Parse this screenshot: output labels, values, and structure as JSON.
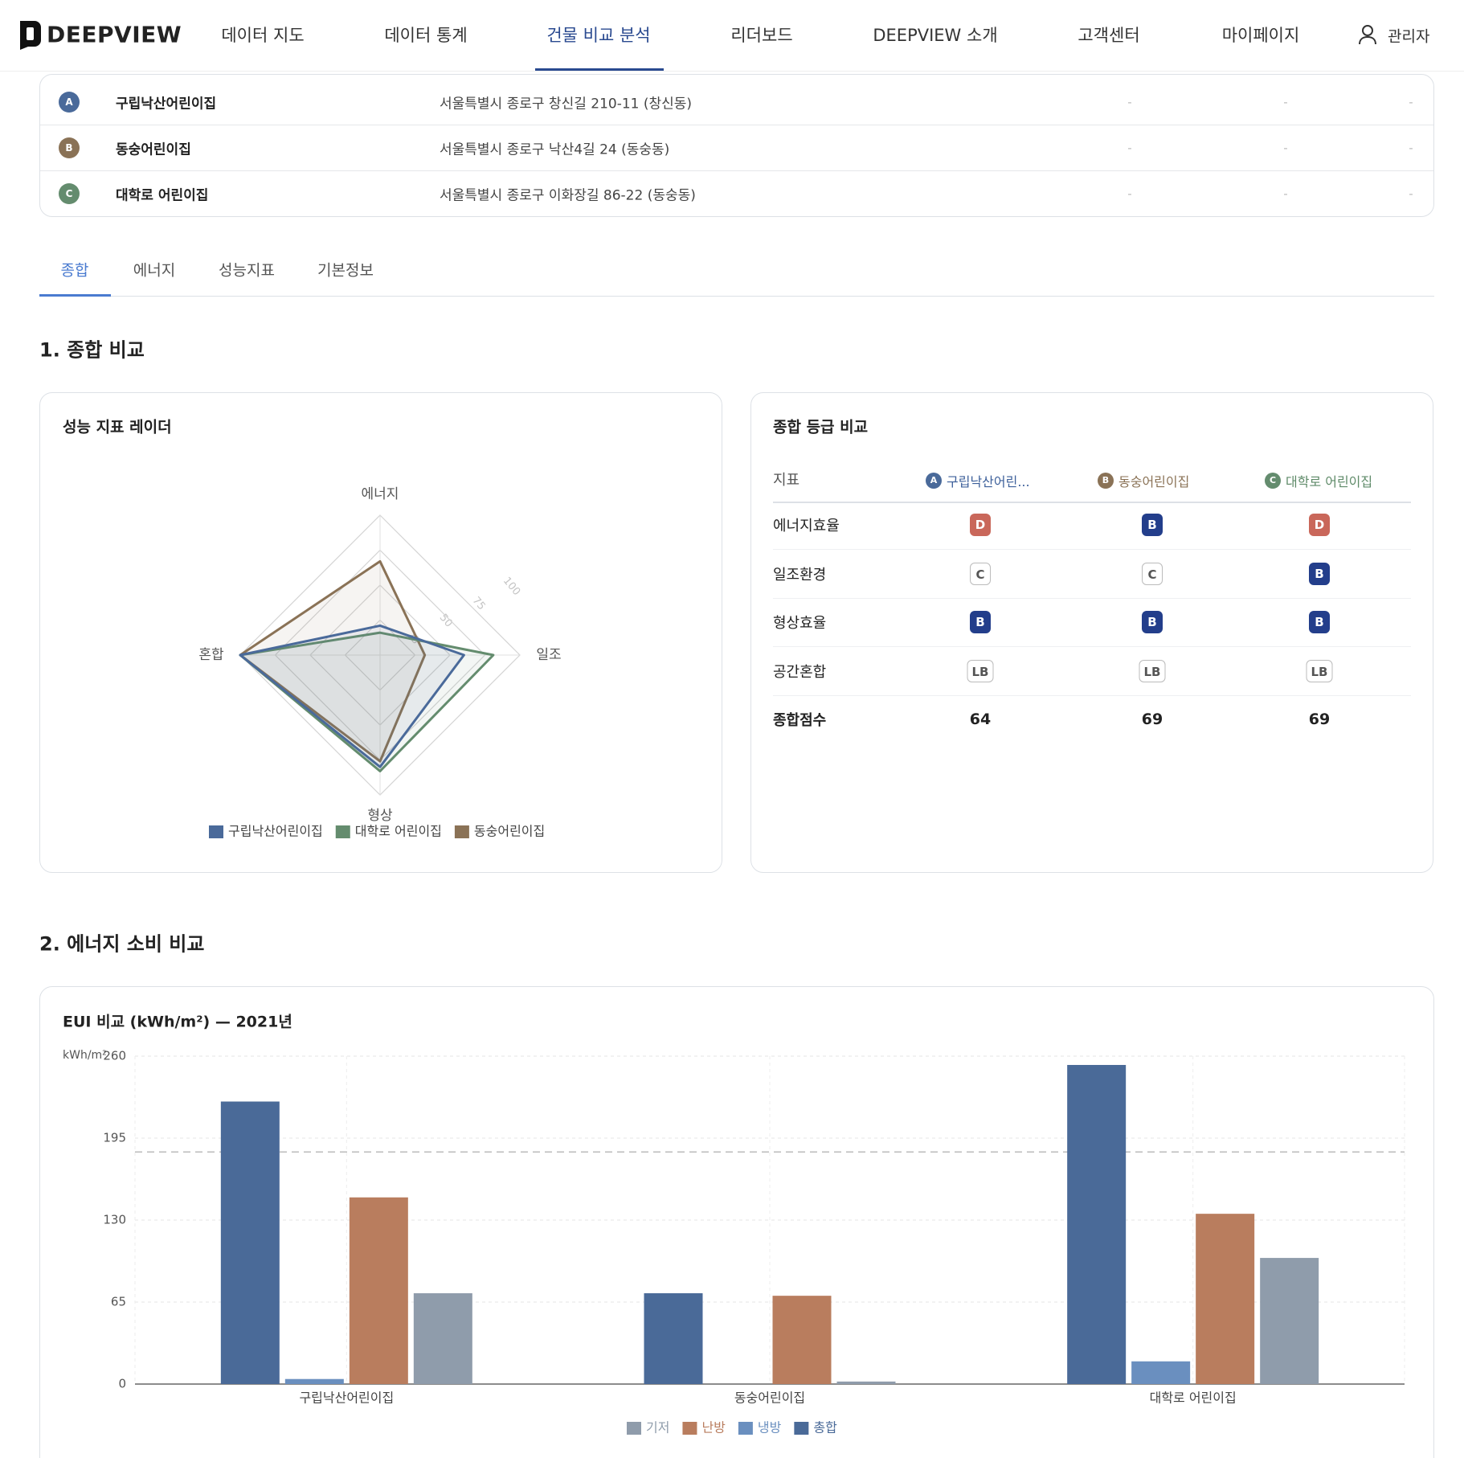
{
  "nav": {
    "logo": "DEEPVIEW",
    "items": [
      "데이터 지도",
      "데이터 통계",
      "건물 비교 분석",
      "리더보드",
      "DEEPVIEW 소개",
      "고객센터",
      "마이페이지"
    ],
    "user": "관리자"
  },
  "buildings": {
    "rows": [
      {
        "badge": "A",
        "name": "구립낙산어린이집",
        "address": "서울특별시 종로구 창신길 210-11 (창신동)",
        "cells": [
          "-",
          "-",
          "-"
        ]
      },
      {
        "badge": "B",
        "name": "동숭어린이집",
        "address": "서울특별시 종로구 낙산4길 24 (동숭동)",
        "cells": [
          "-",
          "-",
          "-"
        ]
      },
      {
        "badge": "C",
        "name": "대학로 어린이집",
        "address": "서울특별시 종로구 이화장길 86-22 (동숭동)",
        "cells": [
          "-",
          "-",
          "-"
        ]
      }
    ]
  },
  "tabs": [
    "종합",
    "에너지",
    "성능지표",
    "기본정보"
  ],
  "sections": [
    "1. 종합 비교",
    "2. 에너지 소비 비교"
  ],
  "grade_table": {
    "title": "종합 등급 비교",
    "header": "지표",
    "columns": [
      {
        "badge": "A",
        "name": "구립낙산어린..."
      },
      {
        "badge": "B",
        "name": "동숭어린이집"
      },
      {
        "badge": "C",
        "name": "대학로 어린이집"
      }
    ],
    "rows": [
      {
        "label": "에너지효율",
        "grades": [
          "D",
          "B",
          "D"
        ]
      },
      {
        "label": "일조환경",
        "grades": [
          "C",
          "C",
          "B"
        ]
      },
      {
        "label": "형상효율",
        "grades": [
          "B",
          "B",
          "B"
        ]
      },
      {
        "label": "공간혼합",
        "grades": [
          "LB",
          "LB",
          "LB"
        ]
      }
    ],
    "total": {
      "label": "종합점수",
      "values": [
        64,
        69,
        69
      ]
    }
  },
  "chart_data": [
    {
      "type": "radar",
      "title": "성능 지표 레이더",
      "axes": [
        "에너지",
        "일조",
        "형상",
        "혼합"
      ],
      "rlim": [
        0,
        100
      ],
      "rticks": [
        25,
        50,
        75,
        100
      ],
      "series": [
        {
          "name": "구립낙산어린이집",
          "color": "#4a6a9a",
          "values": [
            21,
            60,
            80,
            100
          ]
        },
        {
          "name": "대학로 어린이집",
          "color": "#648c6e",
          "values": [
            16,
            81,
            83,
            100
          ]
        },
        {
          "name": "동숭어린이집",
          "color": "#8a7256",
          "values": [
            67,
            32,
            76,
            100
          ]
        }
      ]
    },
    {
      "type": "bar",
      "title": "EUI 비교 (kWh/m²) — 2021년",
      "ylabel": "kWh/m²",
      "categories": [
        "구립낙산어린이집",
        "동숭어린이집",
        "대학로 어린이집"
      ],
      "series": [
        {
          "name": "기저",
          "color": "#8f9cab",
          "values": [
            72,
            2,
            100
          ]
        },
        {
          "name": "난방",
          "color": "#b97d5e",
          "values": [
            148,
            70,
            135
          ]
        },
        {
          "name": "냉방",
          "color": "#6a8fbf",
          "values": [
            4,
            0,
            18
          ]
        },
        {
          "name": "총합",
          "color": "#4a6a98",
          "values": [
            224,
            72,
            253
          ]
        }
      ],
      "ylim": [
        0,
        260
      ],
      "yticks": [
        0,
        65,
        130,
        195,
        260
      ],
      "reference_line": 184,
      "grid": true
    }
  ]
}
